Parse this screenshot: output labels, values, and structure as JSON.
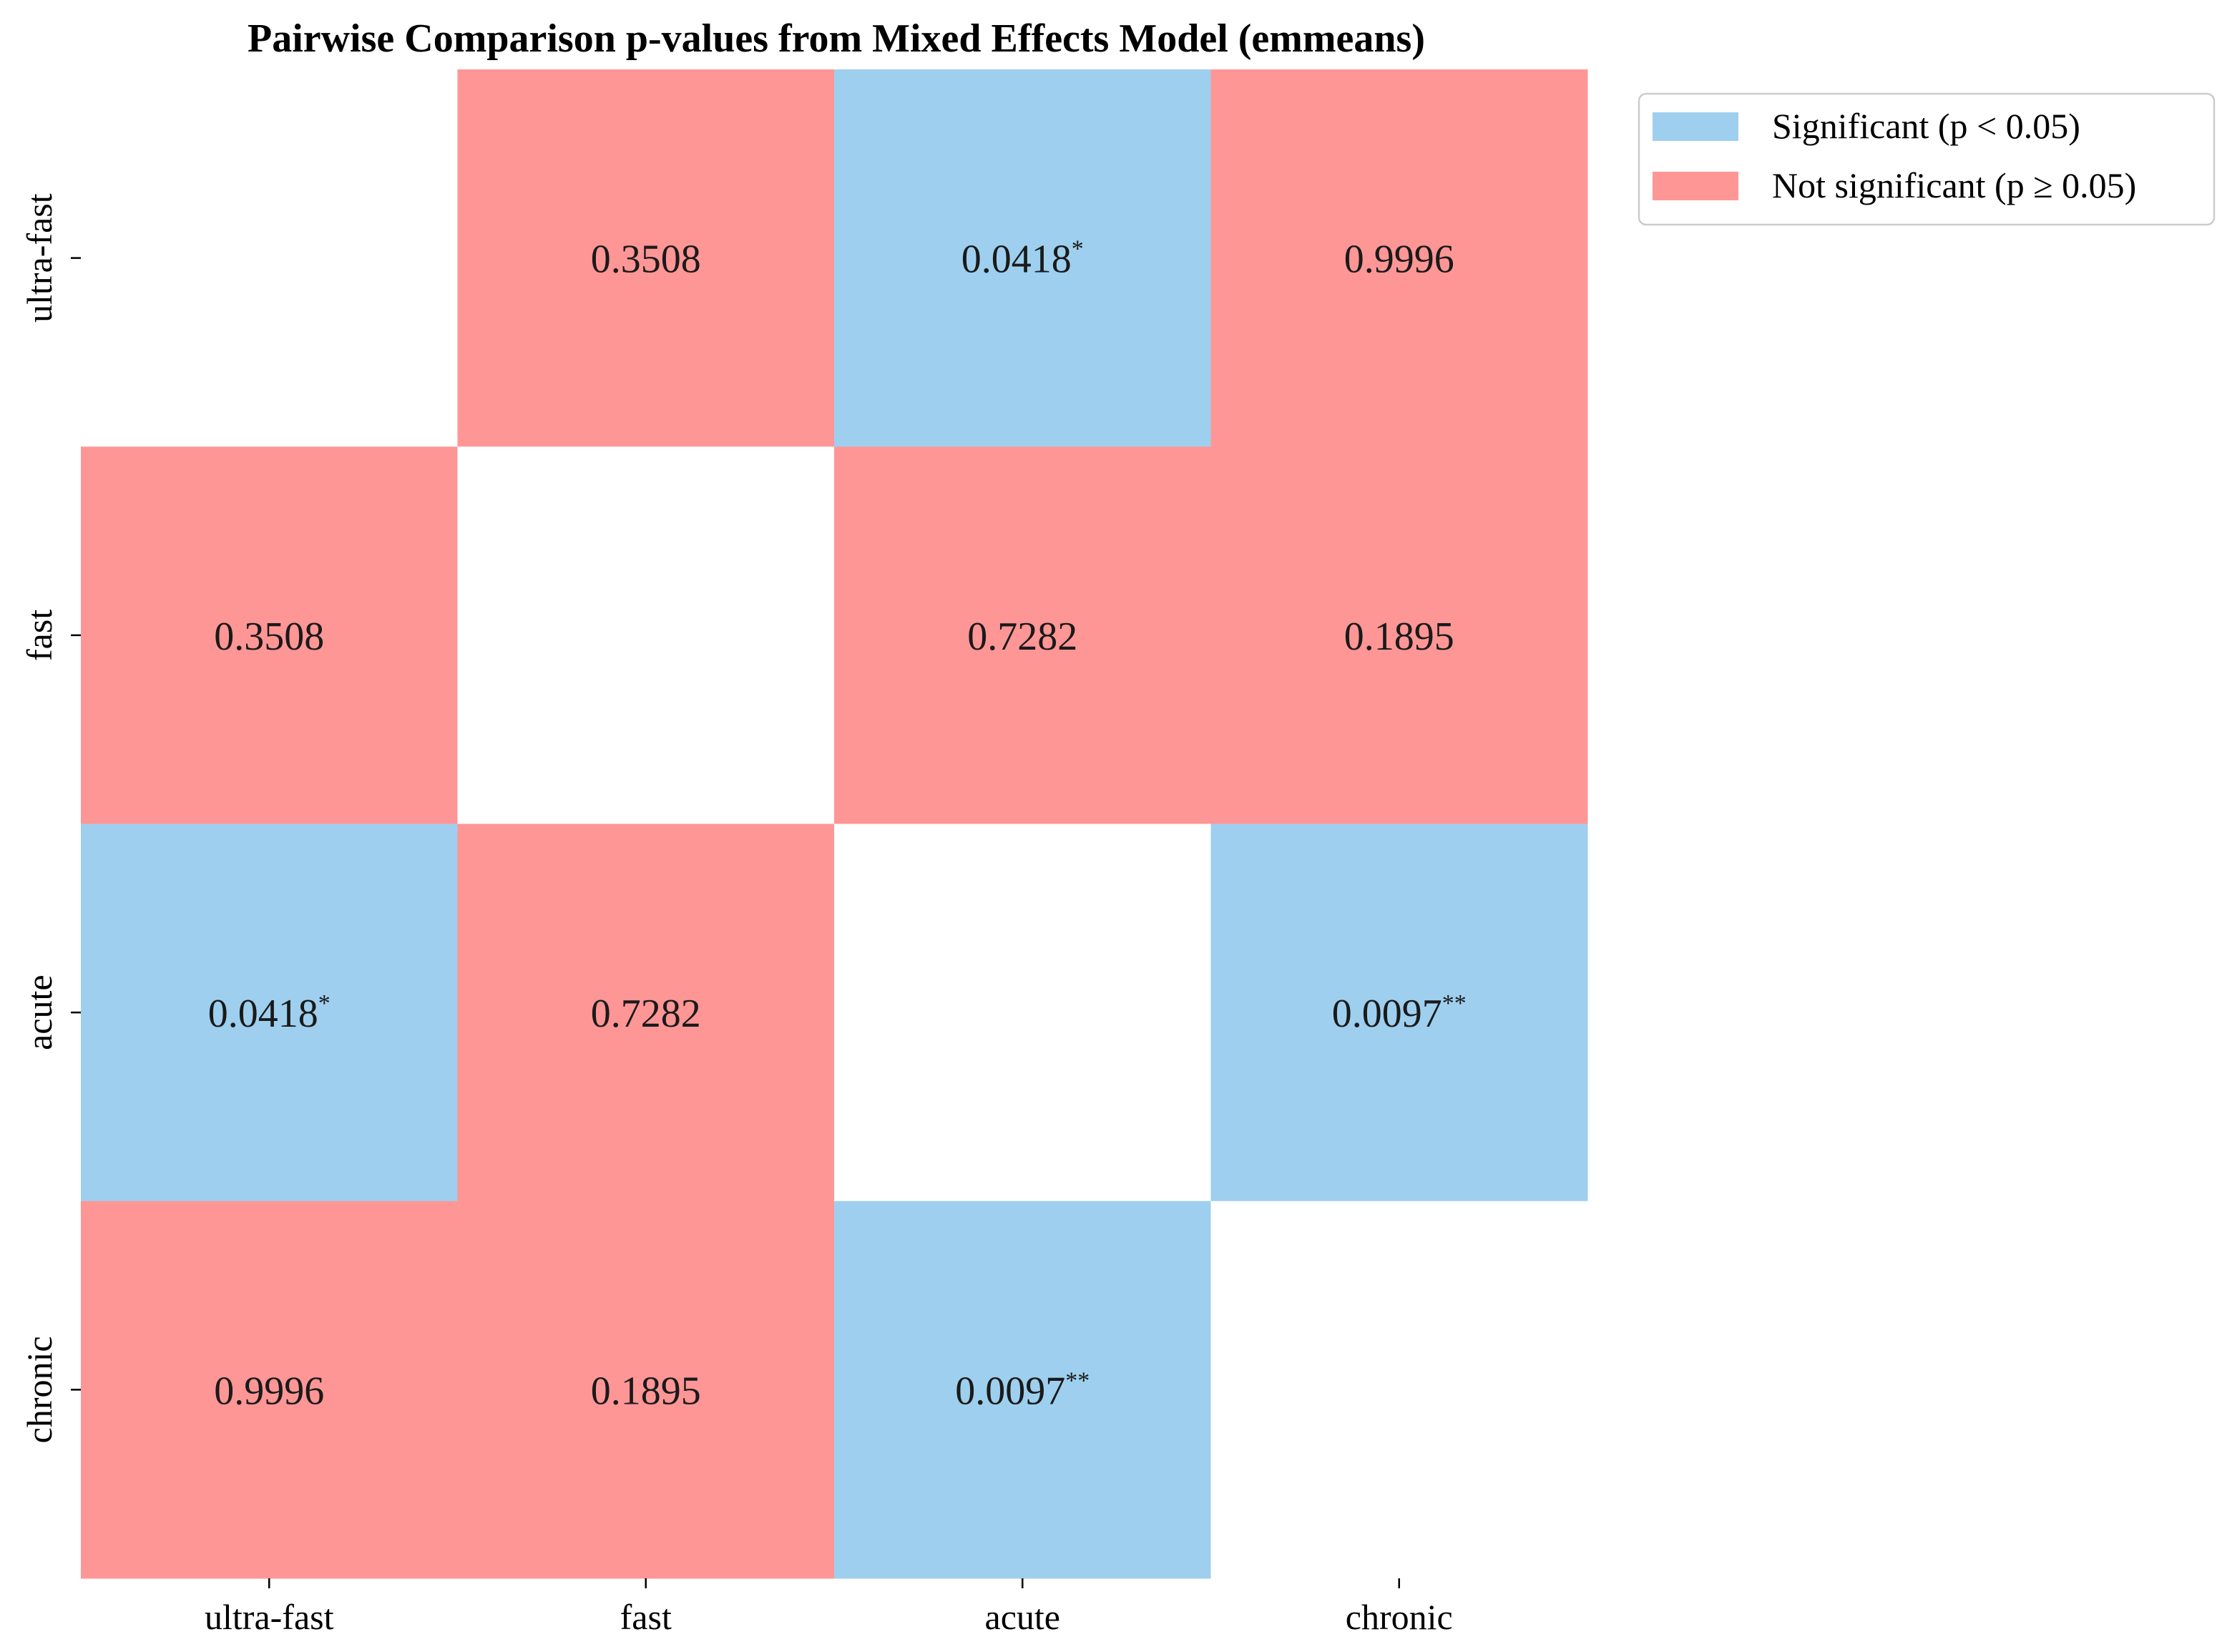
{
  "chart_data": {
    "type": "heatmap",
    "title": "Pairwise Comparison p-values from Mixed Effects Model (emmeans)",
    "rows": [
      "ultra-fast",
      "fast",
      "acute",
      "chronic"
    ],
    "columns": [
      "ultra-fast",
      "fast",
      "acute",
      "chronic"
    ],
    "cells": [
      [
        null,
        {
          "value": "0.3508",
          "stars": ""
        },
        {
          "value": "0.0418",
          "stars": "*"
        },
        {
          "value": "0.9996",
          "stars": ""
        }
      ],
      [
        {
          "value": "0.3508",
          "stars": ""
        },
        null,
        {
          "value": "0.7282",
          "stars": ""
        },
        {
          "value": "0.1895",
          "stars": ""
        }
      ],
      [
        {
          "value": "0.0418",
          "stars": "*"
        },
        {
          "value": "0.7282",
          "stars": ""
        },
        null,
        {
          "value": "0.0097",
          "stars": "**"
        }
      ],
      [
        {
          "value": "0.9996",
          "stars": ""
        },
        {
          "value": "0.1895",
          "stars": ""
        },
        {
          "value": "0.0097",
          "stars": "**"
        },
        null
      ]
    ],
    "significance_threshold": 0.05,
    "colors": {
      "significant": "#9ecfee",
      "not_significant": "#ff9696",
      "diagonal": "#ffffff"
    },
    "legend": {
      "placement": "outside-top-right",
      "entries": [
        {
          "label": "Significant (p < 0.05)",
          "category": "significant"
        },
        {
          "label": "Not significant (p ≥ 0.05)",
          "category": "not_significant"
        }
      ]
    },
    "grid": false
  }
}
